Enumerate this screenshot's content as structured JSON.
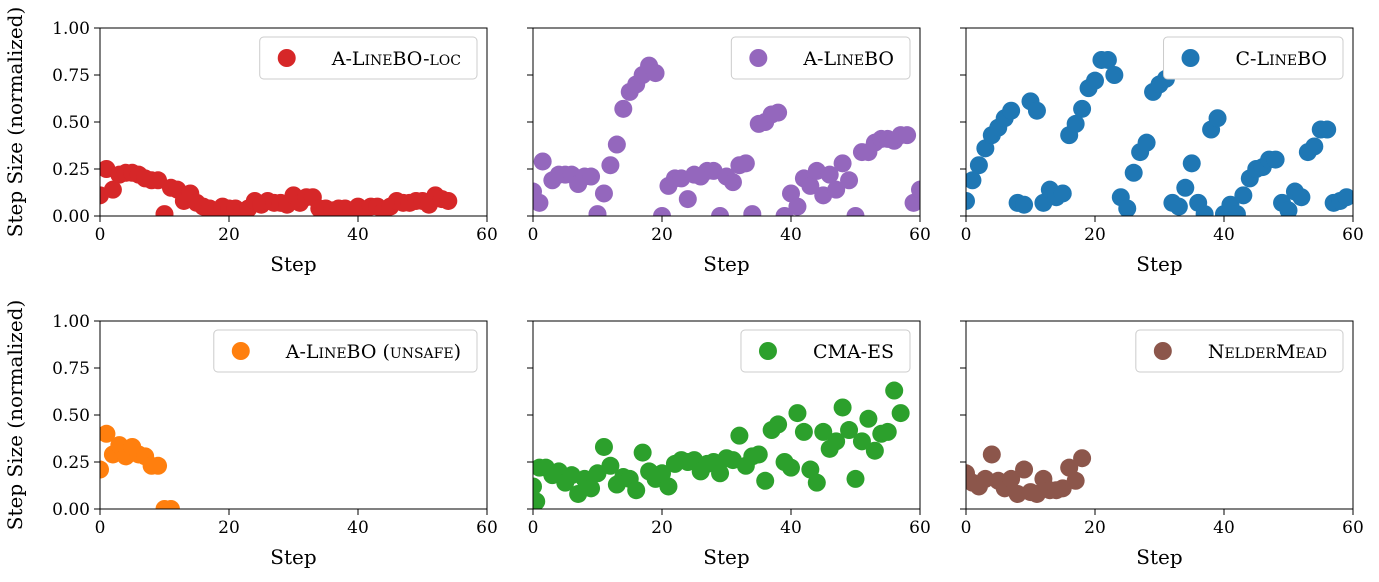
{
  "figure": {
    "x_label": "Step",
    "y_label": "Step Size (normalized)"
  },
  "chart_data": [
    {
      "type": "scatter",
      "legend": {
        "main": "A-L",
        "sc": "INE",
        "main2": "BO-",
        "sc2": "LOC",
        "placement": "upper-right"
      },
      "color": "#d62728",
      "xlim": [
        0,
        60
      ],
      "ylim": [
        0,
        1
      ],
      "x_ticks": [
        "0",
        "20",
        "40",
        "60"
      ],
      "y_ticks": [
        "0.00",
        "0.25",
        "0.50",
        "0.75",
        "1.00"
      ],
      "x_label": "Step",
      "y_label": "Step Size (normalized)",
      "points": [
        [
          0,
          0.11
        ],
        [
          1,
          0.25
        ],
        [
          2,
          0.14
        ],
        [
          3,
          0.22
        ],
        [
          4,
          0.23
        ],
        [
          5,
          0.23
        ],
        [
          6,
          0.22
        ],
        [
          7,
          0.2
        ],
        [
          8,
          0.19
        ],
        [
          9,
          0.19
        ],
        [
          10,
          0.01
        ],
        [
          11,
          0.15
        ],
        [
          12,
          0.14
        ],
        [
          13,
          0.08
        ],
        [
          14,
          0.12
        ],
        [
          15,
          0.07
        ],
        [
          16,
          0.05
        ],
        [
          17,
          0.04
        ],
        [
          18,
          0.03
        ],
        [
          19,
          0.05
        ],
        [
          20,
          0.04
        ],
        [
          21,
          0.04
        ],
        [
          22,
          0.02
        ],
        [
          23,
          0.04
        ],
        [
          24,
          0.08
        ],
        [
          25,
          0.06
        ],
        [
          26,
          0.08
        ],
        [
          27,
          0.07
        ],
        [
          28,
          0.07
        ],
        [
          29,
          0.06
        ],
        [
          30,
          0.11
        ],
        [
          31,
          0.07
        ],
        [
          32,
          0.1
        ],
        [
          33,
          0.1
        ],
        [
          34,
          0.04
        ],
        [
          35,
          0.04
        ],
        [
          36,
          0.03
        ],
        [
          37,
          0.04
        ],
        [
          38,
          0.04
        ],
        [
          39,
          0.03
        ],
        [
          40,
          0.05
        ],
        [
          41,
          0.03
        ],
        [
          42,
          0.05
        ],
        [
          43,
          0.05
        ],
        [
          44,
          0.03
        ],
        [
          45,
          0.05
        ],
        [
          46,
          0.08
        ],
        [
          47,
          0.07
        ],
        [
          48,
          0.07
        ],
        [
          49,
          0.08
        ],
        [
          50,
          0.08
        ],
        [
          51,
          0.06
        ],
        [
          52,
          0.11
        ],
        [
          53,
          0.09
        ],
        [
          54,
          0.08
        ]
      ]
    },
    {
      "type": "scatter",
      "legend": {
        "main": "A-L",
        "sc": "INE",
        "main2": "BO",
        "sc2": "",
        "placement": "upper-right"
      },
      "color": "#9467bd",
      "xlim": [
        0,
        60
      ],
      "ylim": [
        0,
        1
      ],
      "x_ticks": [
        "0",
        "20",
        "40",
        "60"
      ],
      "y_ticks": [
        "0.00",
        "0.25",
        "0.50",
        "0.75",
        "1.00"
      ],
      "x_label": "Step",
      "y_label": "",
      "points": [
        [
          0,
          0.13
        ],
        [
          1,
          0.07
        ],
        [
          1.5,
          0.29
        ],
        [
          3,
          0.19
        ],
        [
          4,
          0.22
        ],
        [
          5,
          0.22
        ],
        [
          6,
          0.22
        ],
        [
          7,
          0.17
        ],
        [
          8,
          0.21
        ],
        [
          9,
          0.21
        ],
        [
          10,
          0.01
        ],
        [
          11,
          0.12
        ],
        [
          12,
          0.27
        ],
        [
          13,
          0.38
        ],
        [
          14,
          0.57
        ],
        [
          15,
          0.66
        ],
        [
          16,
          0.7
        ],
        [
          17,
          0.75
        ],
        [
          18,
          0.8
        ],
        [
          19,
          0.76
        ],
        [
          20,
          0.0
        ],
        [
          21,
          0.16
        ],
        [
          22,
          0.2
        ],
        [
          23,
          0.2
        ],
        [
          24,
          0.09
        ],
        [
          25,
          0.22
        ],
        [
          26,
          0.21
        ],
        [
          27,
          0.24
        ],
        [
          28,
          0.24
        ],
        [
          29,
          0.0
        ],
        [
          30,
          0.21
        ],
        [
          31,
          0.18
        ],
        [
          32,
          0.27
        ],
        [
          33,
          0.28
        ],
        [
          34,
          0.01
        ],
        [
          35,
          0.49
        ],
        [
          36,
          0.5
        ],
        [
          37,
          0.54
        ],
        [
          38,
          0.55
        ],
        [
          39,
          0.0
        ],
        [
          40,
          0.12
        ],
        [
          41,
          0.05
        ],
        [
          42,
          0.2
        ],
        [
          43,
          0.16
        ],
        [
          44,
          0.24
        ],
        [
          45,
          0.11
        ],
        [
          46,
          0.22
        ],
        [
          47,
          0.14
        ],
        [
          48,
          0.28
        ],
        [
          49,
          0.19
        ],
        [
          50,
          0.0
        ],
        [
          51,
          0.34
        ],
        [
          52,
          0.34
        ],
        [
          53,
          0.39
        ],
        [
          54,
          0.41
        ],
        [
          55,
          0.41
        ],
        [
          56,
          0.4
        ],
        [
          57,
          0.43
        ],
        [
          58,
          0.43
        ],
        [
          59,
          0.07
        ],
        [
          60,
          0.14
        ]
      ]
    },
    {
      "type": "scatter",
      "legend": {
        "main": "C-L",
        "sc": "INE",
        "main2": "BO",
        "sc2": "",
        "placement": "upper-right"
      },
      "color": "#1f77b4",
      "xlim": [
        0,
        60
      ],
      "ylim": [
        0,
        1
      ],
      "x_ticks": [
        "0",
        "20",
        "40",
        "60"
      ],
      "y_ticks": [
        "0.00",
        "0.25",
        "0.50",
        "0.75",
        "1.00"
      ],
      "x_label": "Step",
      "y_label": "",
      "points": [
        [
          0,
          0.08
        ],
        [
          1,
          0.19
        ],
        [
          2,
          0.27
        ],
        [
          3,
          0.36
        ],
        [
          4,
          0.43
        ],
        [
          5,
          0.47
        ],
        [
          6,
          0.52
        ],
        [
          7,
          0.56
        ],
        [
          8,
          0.07
        ],
        [
          9,
          0.06
        ],
        [
          10,
          0.61
        ],
        [
          11,
          0.56
        ],
        [
          12,
          0.07
        ],
        [
          13,
          0.14
        ],
        [
          14,
          0.1
        ],
        [
          15,
          0.12
        ],
        [
          16,
          0.43
        ],
        [
          17,
          0.49
        ],
        [
          18,
          0.57
        ],
        [
          19,
          0.68
        ],
        [
          20,
          0.72
        ],
        [
          21,
          0.83
        ],
        [
          22,
          0.83
        ],
        [
          23,
          0.75
        ],
        [
          24,
          0.1
        ],
        [
          25,
          0.04
        ],
        [
          26,
          0.23
        ],
        [
          27,
          0.34
        ],
        [
          28,
          0.39
        ],
        [
          29,
          0.66
        ],
        [
          30,
          0.7
        ],
        [
          31,
          0.73
        ],
        [
          32,
          0.07
        ],
        [
          33,
          0.05
        ],
        [
          34,
          0.15
        ],
        [
          35,
          0.28
        ],
        [
          36,
          0.07
        ],
        [
          37,
          0.01
        ],
        [
          38,
          0.46
        ],
        [
          39,
          0.52
        ],
        [
          40,
          0.01
        ],
        [
          41,
          0.06
        ],
        [
          42,
          0.01
        ],
        [
          43,
          0.11
        ],
        [
          44,
          0.2
        ],
        [
          45,
          0.25
        ],
        [
          46,
          0.26
        ],
        [
          47,
          0.3
        ],
        [
          48,
          0.3
        ],
        [
          49,
          0.07
        ],
        [
          50,
          0.03
        ],
        [
          51,
          0.13
        ],
        [
          52,
          0.1
        ],
        [
          53,
          0.34
        ],
        [
          54,
          0.37
        ],
        [
          55,
          0.46
        ],
        [
          56,
          0.46
        ],
        [
          57,
          0.07
        ],
        [
          58,
          0.08
        ],
        [
          59,
          0.1
        ]
      ]
    },
    {
      "type": "scatter",
      "legend": {
        "main": "A-L",
        "sc": "INE",
        "main2": "BO (",
        "sc2": "UNSAFE",
        "tail": ")",
        "placement": "upper-right"
      },
      "color": "#ff7f0e",
      "xlim": [
        0,
        60
      ],
      "ylim": [
        0,
        1
      ],
      "x_ticks": [
        "0",
        "20",
        "40",
        "60"
      ],
      "y_ticks": [
        "0.00",
        "0.25",
        "0.50",
        "0.75",
        "1.00"
      ],
      "x_label": "Step",
      "y_label": "Step Size (normalized)",
      "points": [
        [
          0,
          0.21
        ],
        [
          1,
          0.4
        ],
        [
          2,
          0.29
        ],
        [
          3,
          0.34
        ],
        [
          4,
          0.28
        ],
        [
          5,
          0.33
        ],
        [
          6,
          0.29
        ],
        [
          7,
          0.28
        ],
        [
          8,
          0.23
        ],
        [
          9,
          0.23
        ],
        [
          10,
          0.0
        ],
        [
          11,
          0.0
        ]
      ]
    },
    {
      "type": "scatter",
      "legend": {
        "main": "CMA-ES",
        "sc": "",
        "main2": "",
        "sc2": "",
        "placement": "upper-right"
      },
      "color": "#2ca02c",
      "xlim": [
        0,
        60
      ],
      "ylim": [
        0,
        1
      ],
      "x_ticks": [
        "0",
        "20",
        "40",
        "60"
      ],
      "y_ticks": [
        "0.00",
        "0.25",
        "0.50",
        "0.75",
        "1.00"
      ],
      "x_label": "Step",
      "y_label": "",
      "points": [
        [
          0,
          0.12
        ],
        [
          0.5,
          0.04
        ],
        [
          1,
          0.22
        ],
        [
          2,
          0.22
        ],
        [
          3,
          0.18
        ],
        [
          4,
          0.2
        ],
        [
          5,
          0.14
        ],
        [
          6,
          0.18
        ],
        [
          7,
          0.08
        ],
        [
          8,
          0.16
        ],
        [
          9,
          0.11
        ],
        [
          10,
          0.19
        ],
        [
          11,
          0.33
        ],
        [
          12,
          0.23
        ],
        [
          13,
          0.13
        ],
        [
          14,
          0.17
        ],
        [
          15,
          0.16
        ],
        [
          16,
          0.1
        ],
        [
          17,
          0.3
        ],
        [
          18,
          0.2
        ],
        [
          19,
          0.16
        ],
        [
          20,
          0.19
        ],
        [
          21,
          0.12
        ],
        [
          22,
          0.24
        ],
        [
          23,
          0.26
        ],
        [
          24,
          0.25
        ],
        [
          25,
          0.26
        ],
        [
          26,
          0.2
        ],
        [
          27,
          0.24
        ],
        [
          28,
          0.25
        ],
        [
          29,
          0.19
        ],
        [
          30,
          0.27
        ],
        [
          31,
          0.26
        ],
        [
          32,
          0.39
        ],
        [
          33,
          0.23
        ],
        [
          34,
          0.28
        ],
        [
          35,
          0.29
        ],
        [
          36,
          0.15
        ],
        [
          37,
          0.42
        ],
        [
          38,
          0.45
        ],
        [
          39,
          0.25
        ],
        [
          40,
          0.22
        ],
        [
          41,
          0.51
        ],
        [
          42,
          0.41
        ],
        [
          43,
          0.21
        ],
        [
          44,
          0.14
        ],
        [
          45,
          0.41
        ],
        [
          46,
          0.32
        ],
        [
          47,
          0.36
        ],
        [
          48,
          0.54
        ],
        [
          49,
          0.42
        ],
        [
          50,
          0.16
        ],
        [
          51,
          0.36
        ],
        [
          52,
          0.48
        ],
        [
          53,
          0.31
        ],
        [
          54,
          0.4
        ],
        [
          55,
          0.41
        ],
        [
          56,
          0.63
        ],
        [
          57,
          0.51
        ]
      ]
    },
    {
      "type": "scatter",
      "legend": {
        "main": "N",
        "sc": "ELDER",
        "main2": "M",
        "sc2": "EAD",
        "placement": "upper-right"
      },
      "color": "#8c564b",
      "xlim": [
        0,
        60
      ],
      "ylim": [
        0,
        1
      ],
      "x_ticks": [
        "0",
        "20",
        "40",
        "60"
      ],
      "y_ticks": [
        "0.00",
        "0.25",
        "0.50",
        "0.75",
        "1.00"
      ],
      "x_label": "Step",
      "y_label": "",
      "points": [
        [
          0,
          0.19
        ],
        [
          1,
          0.14
        ],
        [
          2,
          0.12
        ],
        [
          3,
          0.16
        ],
        [
          4,
          0.29
        ],
        [
          5,
          0.15
        ],
        [
          6,
          0.11
        ],
        [
          7,
          0.16
        ],
        [
          8,
          0.08
        ],
        [
          9,
          0.21
        ],
        [
          10,
          0.09
        ],
        [
          11,
          0.08
        ],
        [
          12,
          0.16
        ],
        [
          13,
          0.1
        ],
        [
          14,
          0.1
        ],
        [
          15,
          0.11
        ],
        [
          16,
          0.22
        ],
        [
          17,
          0.15
        ],
        [
          18,
          0.27
        ]
      ]
    }
  ]
}
